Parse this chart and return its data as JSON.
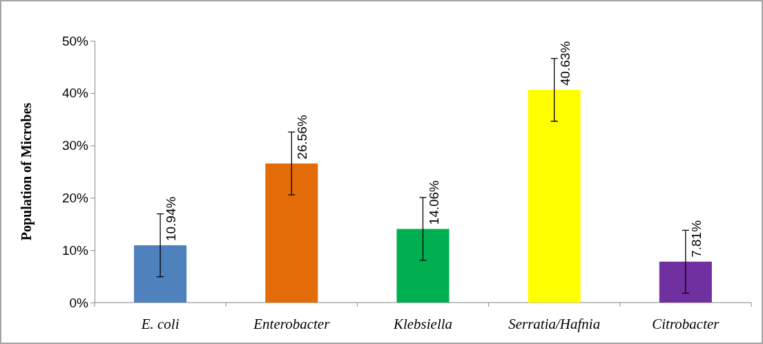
{
  "chart_data": {
    "type": "bar",
    "ylabel": "Population of Microbes",
    "categories": [
      "E. coli",
      "Enterobacter",
      "Klebsiella",
      "Serratia/Hafnia",
      "Citrobacter"
    ],
    "values": [
      10.94,
      26.56,
      14.06,
      40.63,
      7.81
    ],
    "colors": [
      "#4f81bd",
      "#e36c09",
      "#00b050",
      "#ffff00",
      "#7030a0"
    ],
    "errors": [
      6,
      6,
      6,
      6,
      6
    ],
    "value_labels": [
      "10.94%",
      "26.56%",
      "14.06%",
      "40.63%",
      "7.81%"
    ],
    "ylim": [
      0,
      50
    ],
    "yticks": [
      {
        "value": 0,
        "label": "0%"
      },
      {
        "value": 10,
        "label": "10%"
      },
      {
        "value": 20,
        "label": "20%"
      },
      {
        "value": 30,
        "label": "30%"
      },
      {
        "value": 40,
        "label": "40%"
      },
      {
        "value": 50,
        "label": "50%"
      }
    ],
    "grid": false
  }
}
